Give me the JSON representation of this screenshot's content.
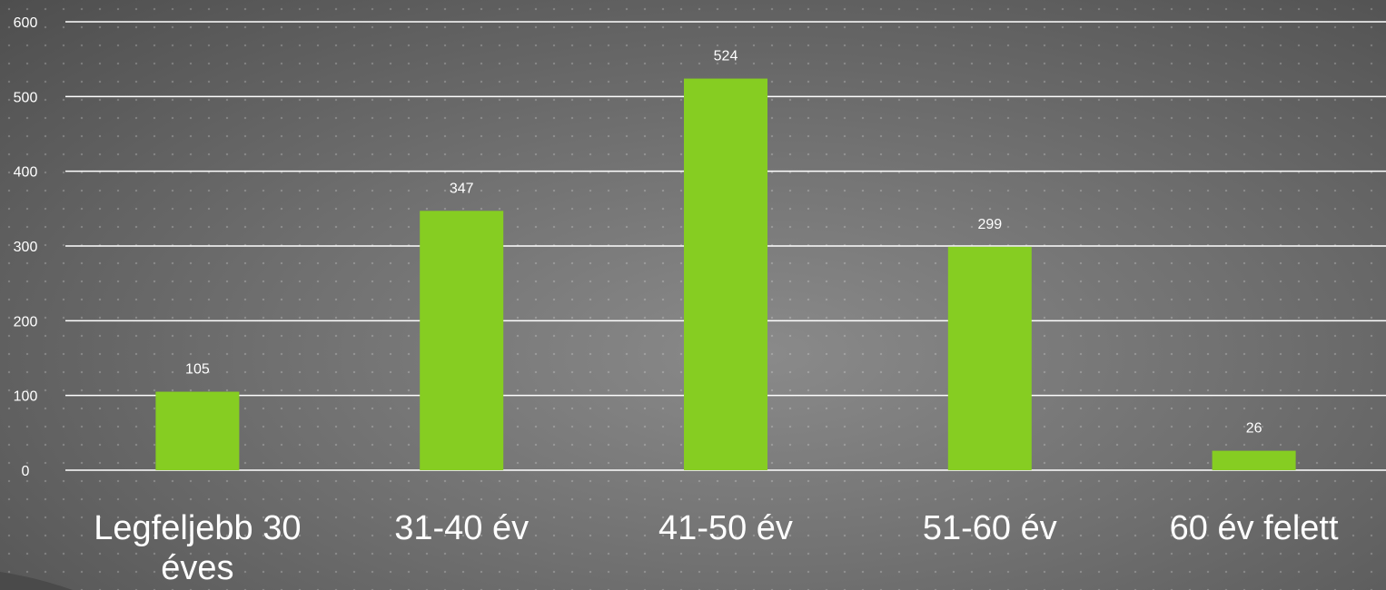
{
  "chart_data": {
    "type": "bar",
    "categories": [
      "Legfeljebb 30 éves",
      "31-40 év",
      "41-50 év",
      "51-60 év",
      "60 év felett"
    ],
    "category_lines": [
      [
        "Legfeljebb 30",
        "éves"
      ],
      [
        "31-40 év"
      ],
      [
        "41-50 év"
      ],
      [
        "51-60 év"
      ],
      [
        "60 év felett"
      ]
    ],
    "values": [
      105,
      347,
      524,
      299,
      26
    ],
    "data_labels": [
      "105",
      "347",
      "524",
      "299",
      "26"
    ],
    "ylim": [
      0,
      600
    ],
    "yticks": [
      0,
      100,
      200,
      300,
      400,
      500,
      600
    ],
    "ytick_labels": [
      "0",
      "100",
      "200",
      "300",
      "400",
      "500",
      "600"
    ],
    "grid": true,
    "bar_color": "#86cd22",
    "gridline_color": "#ffffff",
    "text_color": "#ffffff"
  }
}
